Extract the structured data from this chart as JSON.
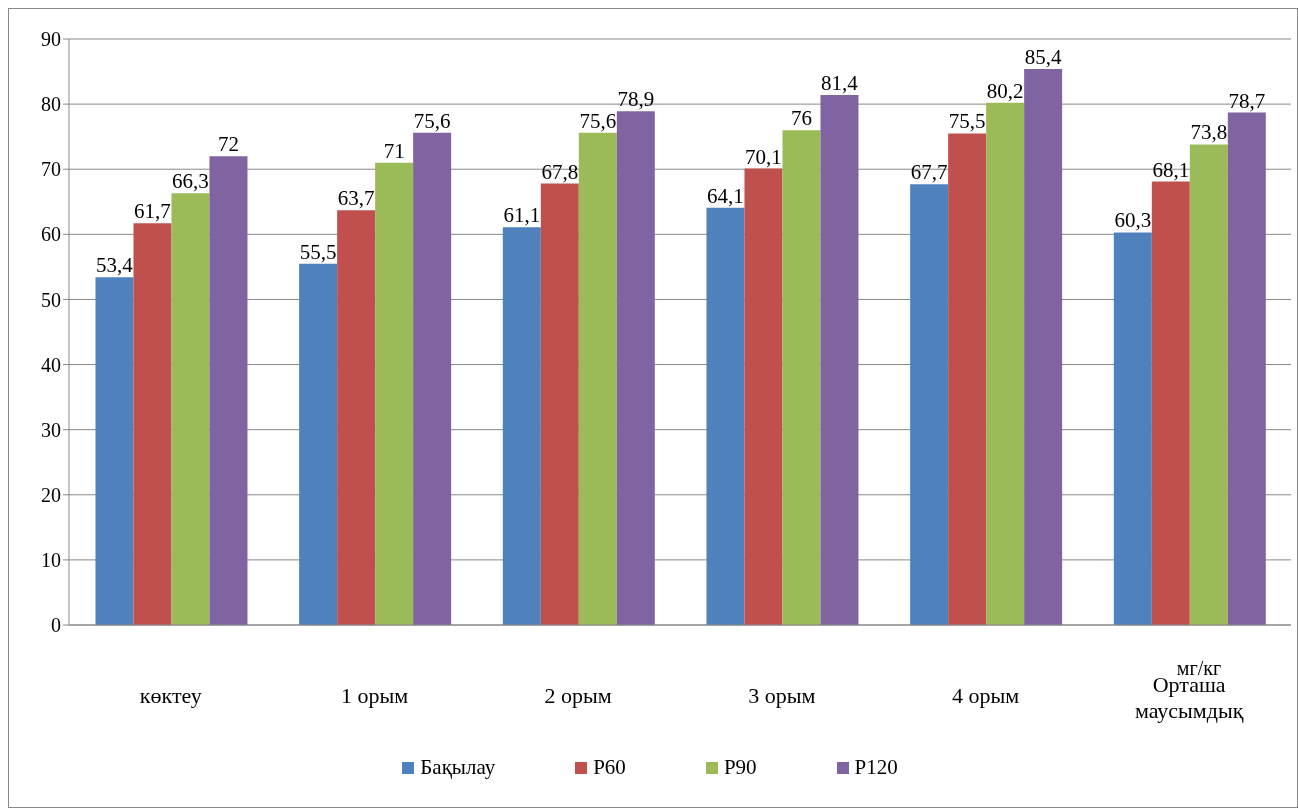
{
  "chart_data": {
    "type": "bar",
    "categories": [
      "көктеу",
      "1 орым",
      "2 орым",
      "3 орым",
      "4 орым",
      "Орташа маусымдық"
    ],
    "series": [
      {
        "name": "Бақылау",
        "color": "#4f81bd",
        "values": [
          53.4,
          55.5,
          61.1,
          64.1,
          67.7,
          60.3
        ],
        "value_labels": [
          "53,4",
          "55,5",
          "61,1",
          "64,1",
          "67,7",
          "60,3"
        ]
      },
      {
        "name": "P60",
        "color": "#c0504d",
        "values": [
          61.7,
          63.7,
          67.8,
          70.1,
          75.5,
          68.1
        ],
        "value_labels": [
          "61,7",
          "63,7",
          "67,8",
          "70,1",
          "75,5",
          "68,1"
        ]
      },
      {
        "name": "P90",
        "color": "#9bbb59",
        "values": [
          66.3,
          71,
          75.6,
          76,
          80.2,
          73.8
        ],
        "value_labels": [
          "66,3",
          "71",
          "75,6",
          "76",
          "80,2",
          "73,8"
        ]
      },
      {
        "name": "P120",
        "color": "#8064a2",
        "values": [
          72,
          75.6,
          78.9,
          81.4,
          85.4,
          78.7
        ],
        "value_labels": [
          "72",
          "75,6",
          "78,9",
          "81,4",
          "85,4",
          "78,7"
        ]
      }
    ],
    "ylim": [
      0,
      90
    ],
    "yticks": [
      0,
      10,
      20,
      30,
      40,
      50,
      60,
      70,
      80,
      90
    ],
    "grid": "y",
    "legend": "bottom",
    "annotations": [
      "мг/кг"
    ]
  }
}
